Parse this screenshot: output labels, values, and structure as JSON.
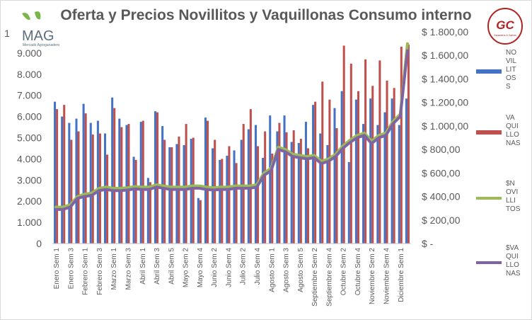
{
  "logo_left": {
    "name": "MAG",
    "tagline": "Mercado Agroganadero"
  },
  "logo_right": {
    "name": "GC",
    "tagline": "Ganadería & Carnes"
  },
  "chart_data": {
    "type": "bar+line",
    "title": "Oferta y Precios Novillitos y Vaquillonas Consumo interno",
    "colors": {
      "novillitos": "#4472c4",
      "vaquillonas": "#c0504d",
      "price_novillitos": "#9bbb59",
      "price_vaquillonas": "#8064a2"
    },
    "y_left": {
      "min": 0,
      "max": 10000,
      "ticks": [
        0,
        1000,
        2000,
        3000,
        4000,
        5000,
        6000,
        7000,
        8000,
        9000
      ],
      "tick_labels": [
        "0",
        "1.000",
        "2.000",
        "3.000",
        "4.000",
        "5.000",
        "6.000",
        "7.000",
        "8.000",
        "9.000"
      ],
      "top_label_partial": "1"
    },
    "y_right": {
      "min": 0,
      "max": 1800,
      "ticks": [
        0,
        200,
        400,
        600,
        800,
        1000,
        1200,
        1400,
        1600,
        1800
      ],
      "tick_labels": [
        "$ -",
        "$ 200,00",
        "$ 400,00",
        "$ 600,00",
        "$ 800,00",
        "$ 1.000,00",
        "$ 1.200,00",
        "$ 1.400,00",
        "$ 1.600,00",
        "$ 1.800,00"
      ]
    },
    "x_labels": [
      "Enero Sem 1",
      "",
      "Enero Sem 3",
      "",
      "Febrero Sem 1",
      "",
      "Febrero Sem 3",
      "",
      "Marzo Sem 1",
      "",
      "Marzo Sem 3",
      "",
      "Abril Sem 1",
      "",
      "Abril Sem 3",
      "",
      "Abril Sem 5",
      "",
      "Mayo Sem 2",
      "",
      "Mayo Sem 4",
      "",
      "Junio Sem 2",
      "",
      "Junio Sem 4",
      "",
      "Julio Sem 2",
      "",
      "Julio Sem 4",
      "",
      "Agosto Sem 1",
      "",
      "Agosto Sem 3",
      "",
      "Agosto Sem 5",
      "",
      "Septiembre Sem 2",
      "",
      "Septiembre Sem 4",
      "",
      "Octubre Sem 2",
      "",
      "Octubre Sem 4",
      "",
      "Noviembre Sem 2",
      "",
      "Noviembre Sem 4",
      "",
      "Diciembre Sem 1",
      ""
    ],
    "series": [
      {
        "name": "NOVILLITOS",
        "legend_lines": [
          "NO",
          "VIL",
          "LIT",
          "OS",
          "S"
        ],
        "kind": "bar",
        "axis": "left",
        "values": [
          6700,
          6000,
          5700,
          5900,
          6600,
          5700,
          5800,
          5200,
          6900,
          5900,
          5600,
          4100,
          5750,
          3100,
          6250,
          5550,
          4550,
          4700,
          4650,
          4950,
          2150,
          5950,
          4500,
          3950,
          4150,
          4400,
          4900,
          5400,
          5600,
          4050,
          6050,
          5300,
          6050,
          4800,
          4750,
          5750,
          6550,
          5200,
          4650,
          6400,
          7200,
          3850,
          6800,
          5650,
          6850,
          5600,
          6200,
          6850,
          5600,
          6850
        ]
      },
      {
        "name": "VAQUILLONAS",
        "legend_lines": [
          "VA",
          "QUI",
          "LLO",
          "NAS"
        ],
        "kind": "bar",
        "axis": "left",
        "values": [
          6350,
          6550,
          4900,
          5300,
          6150,
          5150,
          5200,
          4200,
          6400,
          5500,
          5650,
          3950,
          5800,
          2900,
          6200,
          4900,
          4550,
          5050,
          5650,
          5000,
          2050,
          5800,
          4900,
          4000,
          4600,
          3800,
          5650,
          6350,
          4600,
          5300,
          4250,
          5700,
          5250,
          5350,
          4950,
          4500,
          6700,
          7650,
          6800,
          5450,
          9350,
          8500,
          7200,
          8700,
          7450,
          8650,
          7700,
          7350,
          9300,
          9400
        ]
      },
      {
        "name": "$NOVILLITOS",
        "legend_lines": [
          "$N",
          "OVI",
          "LLI",
          "TOS"
        ],
        "kind": "line",
        "axis": "right",
        "values": [
          310,
          310,
          330,
          400,
          420,
          430,
          470,
          480,
          470,
          470,
          475,
          485,
          480,
          480,
          500,
          490,
          480,
          480,
          480,
          490,
          490,
          480,
          475,
          480,
          480,
          490,
          490,
          490,
          500,
          600,
          640,
          820,
          800,
          760,
          750,
          740,
          750,
          700,
          720,
          760,
          830,
          880,
          920,
          940,
          870,
          920,
          940,
          1040,
          1100,
          1700
        ]
      },
      {
        "name": "$VAQUILLONAS",
        "legend_lines": [
          "$VA",
          "QUI",
          "LLO",
          "NAS"
        ],
        "kind": "line",
        "axis": "right",
        "values": [
          290,
          290,
          310,
          385,
          400,
          410,
          450,
          460,
          450,
          450,
          455,
          465,
          460,
          460,
          480,
          470,
          460,
          460,
          460,
          470,
          470,
          460,
          455,
          460,
          460,
          470,
          470,
          470,
          480,
          580,
          620,
          800,
          780,
          740,
          730,
          720,
          730,
          680,
          700,
          740,
          810,
          860,
          900,
          920,
          850,
          900,
          920,
          1020,
          1080,
          1640
        ]
      }
    ],
    "legend_position": "right",
    "grid": false
  }
}
